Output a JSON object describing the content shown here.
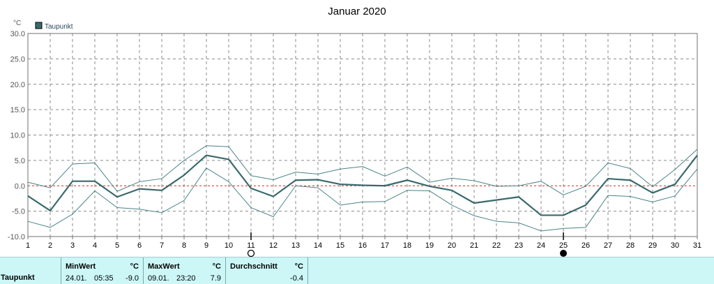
{
  "chart_data": {
    "type": "line",
    "title": "Januar 2020",
    "unit": "°C",
    "x": [
      1,
      2,
      3,
      4,
      5,
      6,
      7,
      8,
      9,
      10,
      11,
      12,
      13,
      14,
      15,
      16,
      17,
      18,
      19,
      20,
      21,
      22,
      23,
      24,
      25,
      26,
      27,
      28,
      29,
      30,
      31
    ],
    "ylim": [
      -10,
      30
    ],
    "yticks": [
      "30.0",
      "25.0",
      "20.0",
      "15.0",
      "10.0",
      "5.0",
      "0.0",
      "-5.0",
      "-10.0"
    ],
    "grid": true,
    "legend_position": "top-left",
    "series": [
      {
        "name": "Taupunkt",
        "role": "average",
        "values": [
          -2.0,
          -4.9,
          0.9,
          0.9,
          -2.2,
          -0.6,
          -0.9,
          2.1,
          6.0,
          5.2,
          -0.5,
          -2.1,
          1.1,
          1.2,
          0.3,
          0.1,
          0.0,
          1.1,
          -0.1,
          -0.9,
          -3.4,
          -2.8,
          -2.2,
          -5.8,
          -5.8,
          -3.8,
          1.4,
          1.1,
          -1.4,
          0.3,
          6.0
        ]
      },
      {
        "role": "max",
        "values": [
          0.7,
          -0.4,
          4.3,
          4.5,
          -1.1,
          0.8,
          1.4,
          5.0,
          7.9,
          7.7,
          2.0,
          1.2,
          2.7,
          2.3,
          3.3,
          3.8,
          1.9,
          3.7,
          0.7,
          1.5,
          1.0,
          -0.1,
          0.0,
          0.9,
          -1.8,
          -0.1,
          4.5,
          3.4,
          -0.2,
          3.2,
          7.2
        ]
      },
      {
        "role": "min",
        "values": [
          -7.0,
          -8.2,
          -5.6,
          -1.0,
          -4.3,
          -4.6,
          -5.3,
          -2.9,
          3.5,
          0.8,
          -4.3,
          -6.1,
          0.0,
          -0.4,
          -3.8,
          -3.2,
          -3.1,
          -0.9,
          -1.0,
          -3.8,
          -5.9,
          -7.0,
          -7.3,
          -8.9,
          -8.4,
          -8.2,
          -1.9,
          -2.1,
          -3.2,
          -2.0,
          3.3
        ]
      }
    ],
    "markers": [
      {
        "x": 11,
        "type": "moon-first-quarter"
      },
      {
        "x": 25,
        "type": "new-moon"
      }
    ],
    "colors": {
      "avg_line": "#3a6a6c",
      "band_line": "#4a8387",
      "zero_line": "#e02020",
      "grid": "#8a8a8a",
      "axis": "#707070",
      "legend_box": "#3a6a6c"
    }
  },
  "stats": {
    "row_label": "Taupunkt",
    "min": {
      "header": "MinWert",
      "unit": "°C",
      "date": "24.01.",
      "time": "05:35",
      "value": "-9.0"
    },
    "max": {
      "header": "MaxWert",
      "unit": "°C",
      "date": "09.01.",
      "time": "23:20",
      "value": "7.9"
    },
    "avg": {
      "header": "Durchschnitt",
      "unit": "°C",
      "value": "-0.4"
    }
  }
}
